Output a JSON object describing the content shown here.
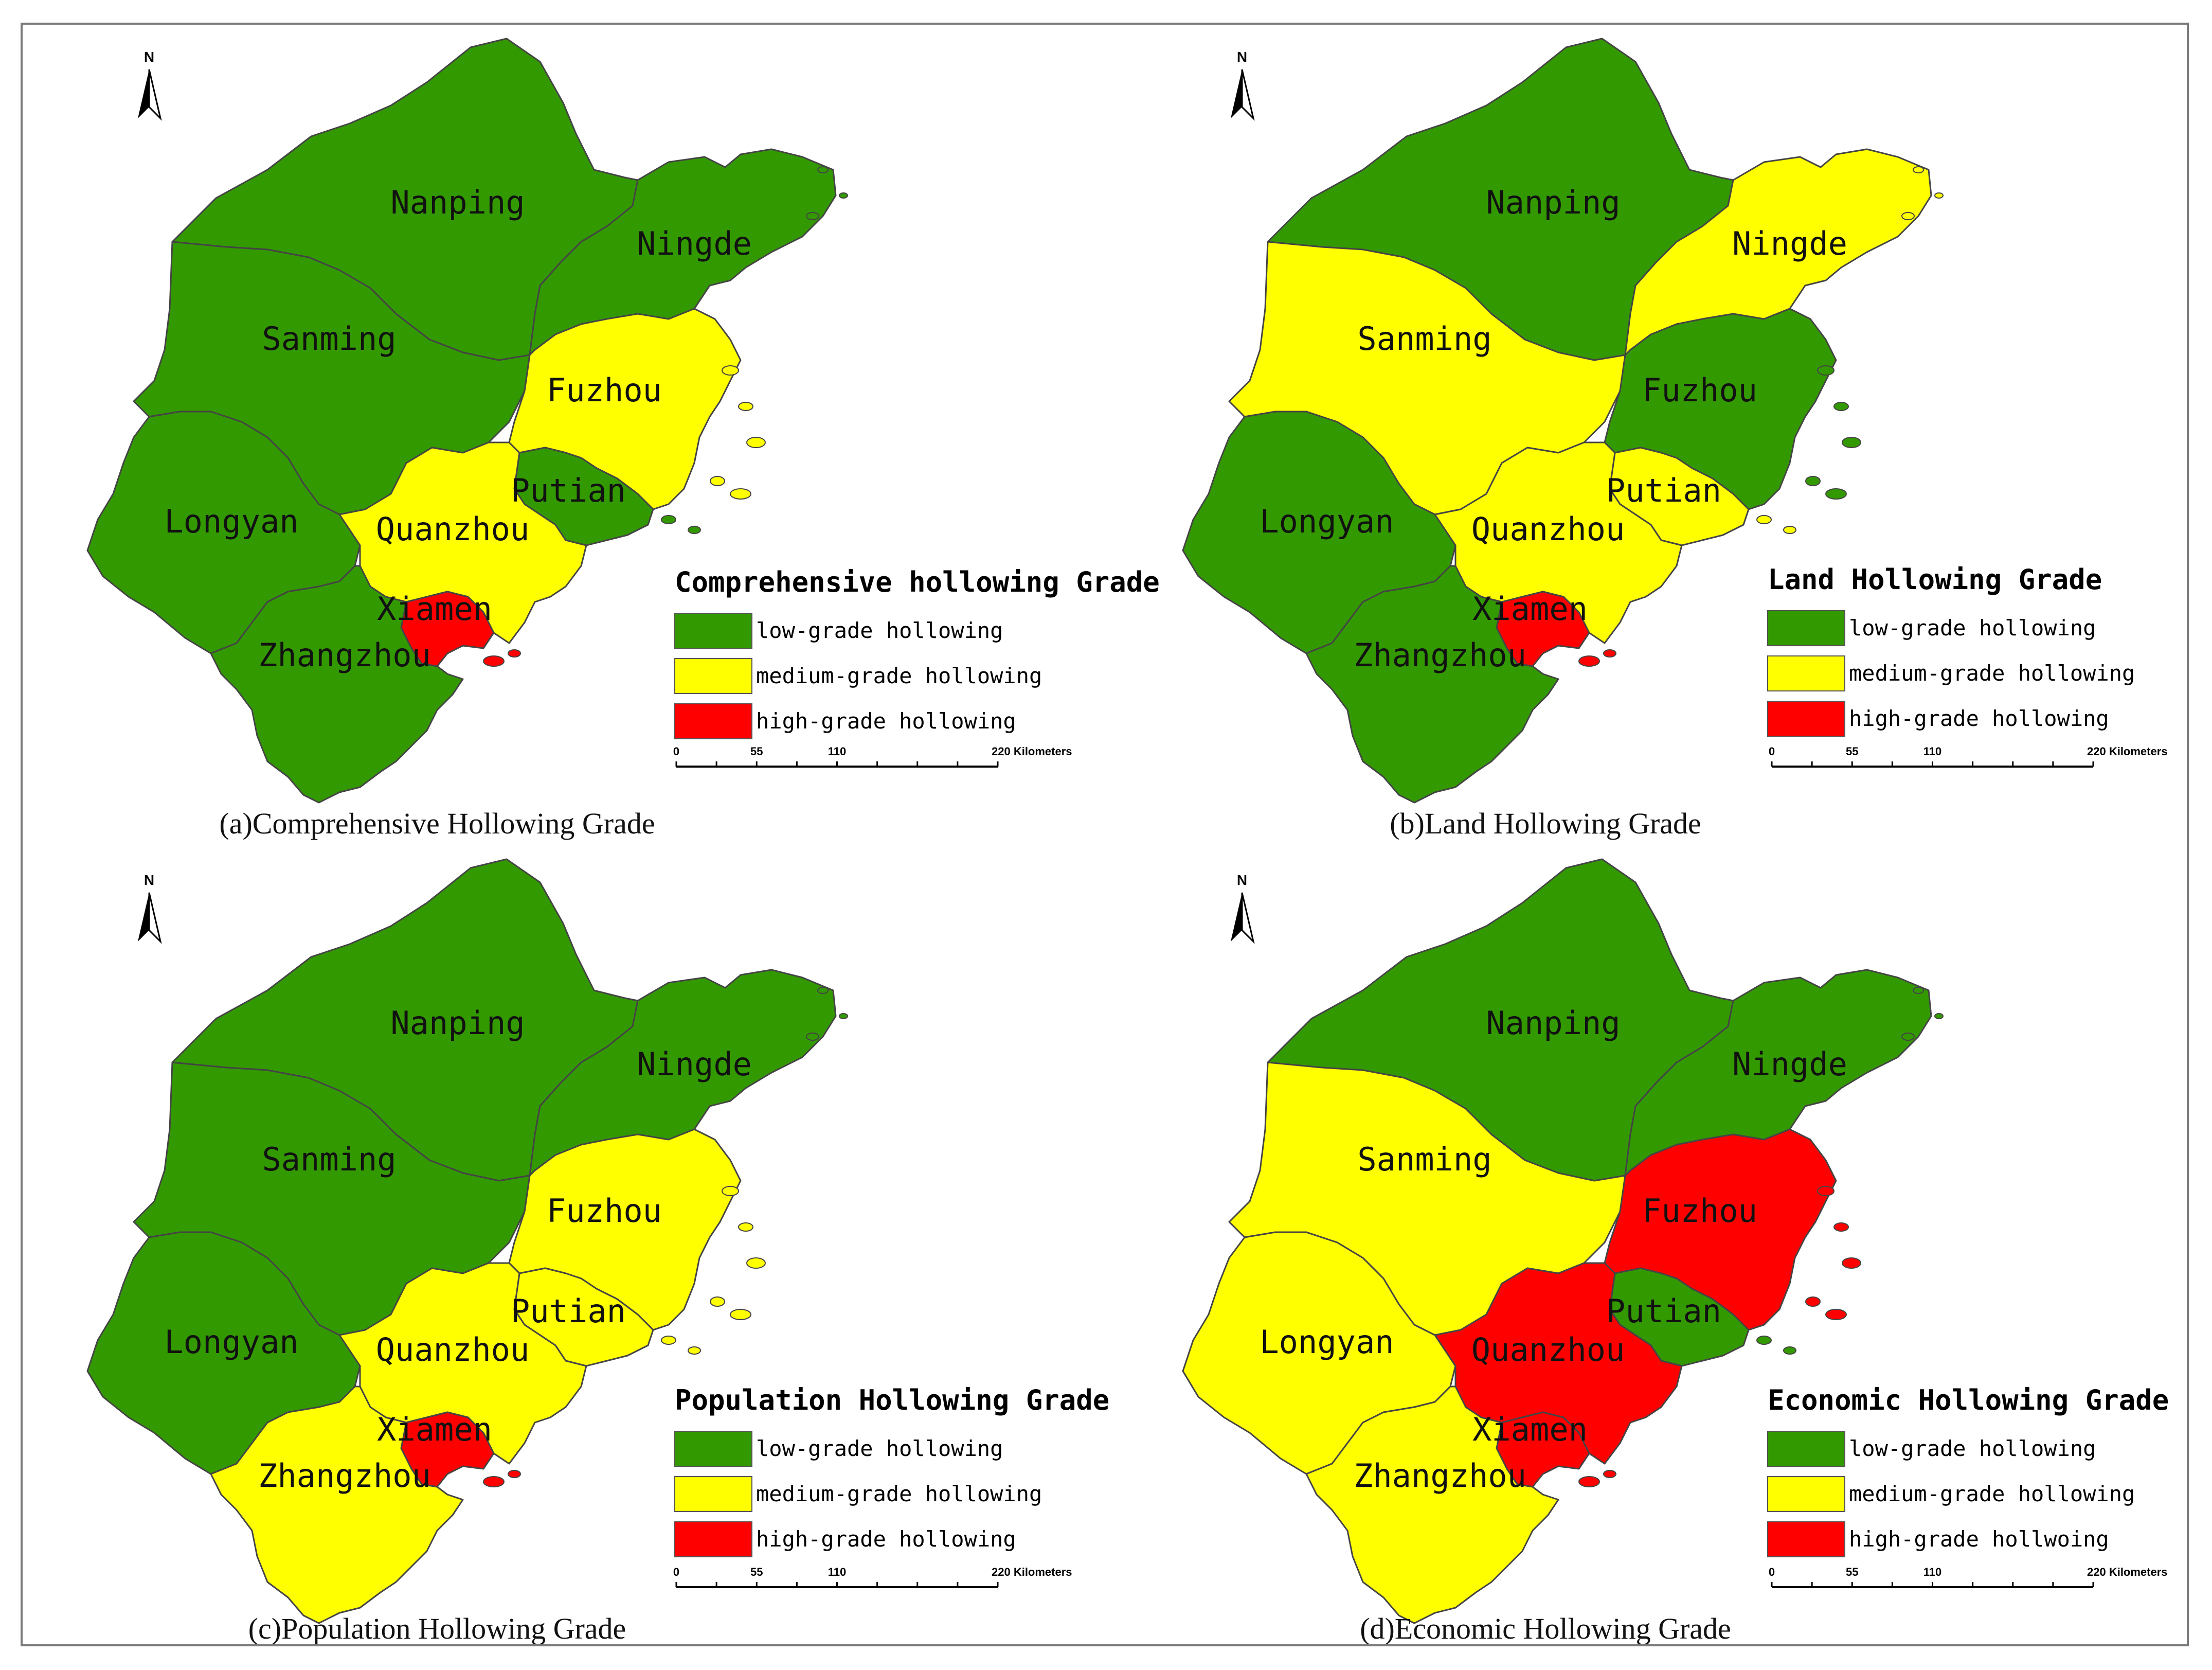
{
  "colors": {
    "low": "#339900",
    "medium": "#ffff00",
    "high": "#ff0000",
    "border": "#444444",
    "frame": "#7a7a7a"
  },
  "north_label": "N",
  "regions": [
    "Nanping",
    "Ningde",
    "Sanming",
    "Fuzhou",
    "Putian",
    "Longyan",
    "Quanzhou",
    "Xiamen",
    "Zhangzhou"
  ],
  "scale": {
    "ticks": [
      "0",
      "55",
      "110",
      "220 Kilometers"
    ]
  },
  "panels": [
    {
      "caption": "(a)Comprehensive Hollowing Grade",
      "legend": {
        "title": "Comprehensive hollowing Grade",
        "items": [
          "low-grade hollowing",
          "medium-grade hollowing",
          "high-grade hollowing"
        ]
      },
      "grades": {
        "Nanping": "low",
        "Ningde": "low",
        "Sanming": "low",
        "Fuzhou": "medium",
        "Putian": "low",
        "Longyan": "low",
        "Quanzhou": "medium",
        "Xiamen": "high",
        "Zhangzhou": "low"
      }
    },
    {
      "caption": "(b)Land Hollowing Grade",
      "legend": {
        "title": "Land Hollowing Grade",
        "items": [
          "low-grade hollowing",
          "medium-grade hollowing",
          "high-grade hollowing"
        ]
      },
      "grades": {
        "Nanping": "low",
        "Ningde": "medium",
        "Sanming": "medium",
        "Fuzhou": "low",
        "Putian": "medium",
        "Longyan": "low",
        "Quanzhou": "medium",
        "Xiamen": "high",
        "Zhangzhou": "low"
      }
    },
    {
      "caption": "(c)Population Hollowing Grade",
      "legend": {
        "title": "Population Hollowing Grade",
        "items": [
          "low-grade hollowing",
          "medium-grade hollowing",
          "high-grade hollowing"
        ]
      },
      "grades": {
        "Nanping": "low",
        "Ningde": "low",
        "Sanming": "low",
        "Fuzhou": "medium",
        "Putian": "medium",
        "Longyan": "low",
        "Quanzhou": "medium",
        "Xiamen": "high",
        "Zhangzhou": "medium"
      }
    },
    {
      "caption": "(d)Economic Hollowing Grade",
      "legend": {
        "title": "Economic Hollowing Grade",
        "items": [
          "low-grade hollowing",
          "medium-grade hollowing",
          "high-grade hollwoing"
        ]
      },
      "grades": {
        "Nanping": "low",
        "Ningde": "low",
        "Sanming": "medium",
        "Fuzhou": "high",
        "Putian": "low",
        "Longyan": "medium",
        "Quanzhou": "high",
        "Xiamen": "high",
        "Zhangzhou": "medium"
      }
    }
  ]
}
